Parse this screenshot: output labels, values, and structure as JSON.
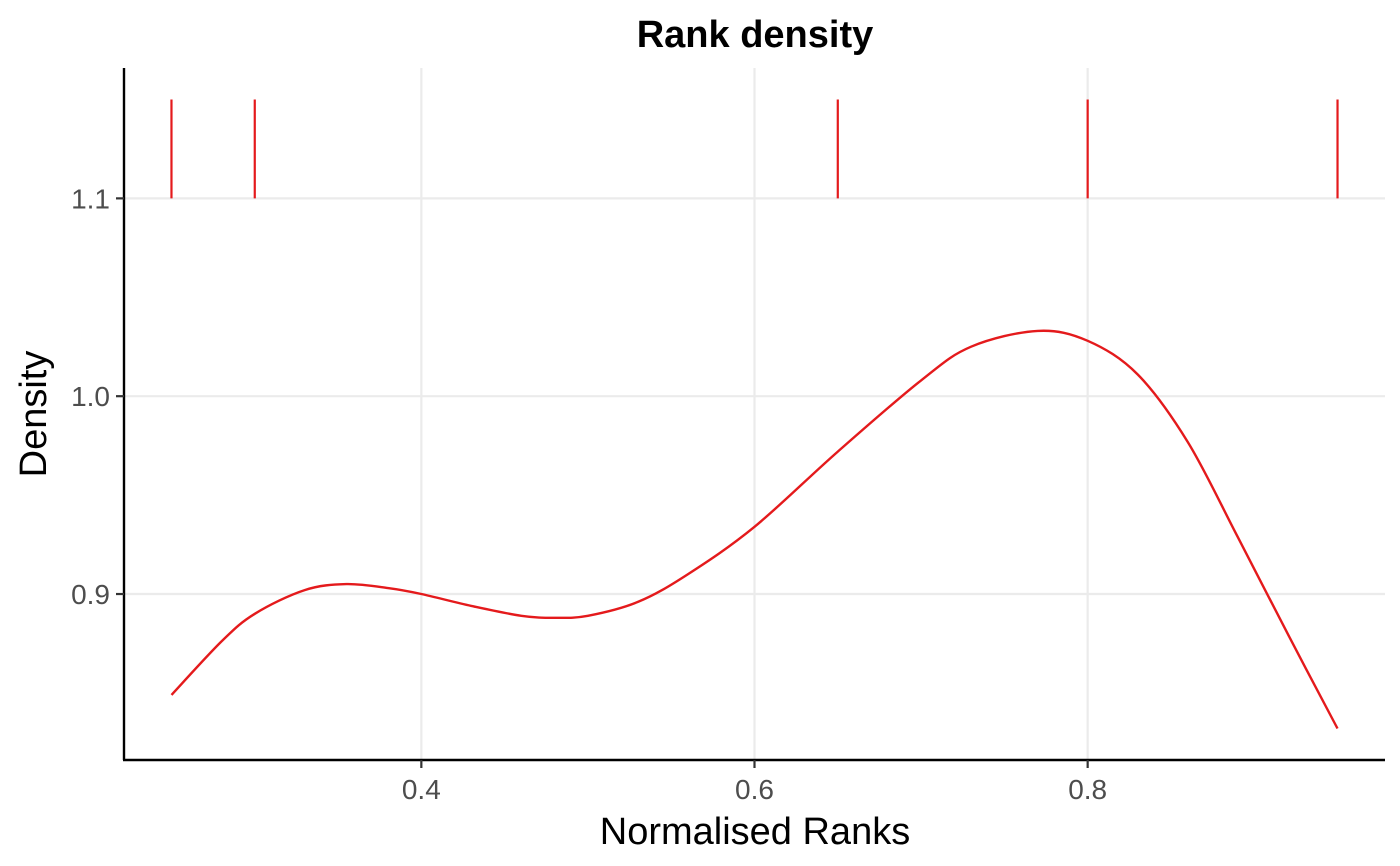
{
  "chart_data": {
    "type": "line",
    "title": "Rank density",
    "xlabel": "Normalised Ranks",
    "ylabel": "Density",
    "xlim": [
      0.2215,
      0.9785
    ],
    "ylim": [
      0.8161,
      1.1659
    ],
    "x_ticks": [
      0.4,
      0.6,
      0.8
    ],
    "x_tick_labels": [
      "0.4",
      "0.6",
      "0.8"
    ],
    "y_ticks": [
      0.9,
      1.0,
      1.1
    ],
    "y_tick_labels": [
      "0.9",
      "1.0",
      "1.1"
    ],
    "grid": true,
    "color": "#e41a1c",
    "series": [
      {
        "x": [
          0.25,
          0.28,
          0.3,
          0.33,
          0.355,
          0.38,
          0.4,
          0.43,
          0.46,
          0.48,
          0.5,
          0.53,
          0.56,
          0.6,
          0.65,
          0.7,
          0.73,
          0.77,
          0.8,
          0.83,
          0.86,
          0.89,
          0.92,
          0.95
        ],
        "y": [
          0.849,
          0.876,
          0.89,
          0.902,
          0.905,
          0.903,
          0.9,
          0.894,
          0.889,
          0.888,
          0.889,
          0.896,
          0.91,
          0.934,
          0.972,
          1.008,
          1.025,
          1.033,
          1.028,
          1.011,
          0.977,
          0.929,
          0.88,
          0.832
        ]
      }
    ],
    "rug": {
      "x": [
        0.25,
        0.3,
        0.65,
        0.8,
        0.95
      ],
      "y_range": [
        1.1,
        1.15
      ]
    }
  }
}
